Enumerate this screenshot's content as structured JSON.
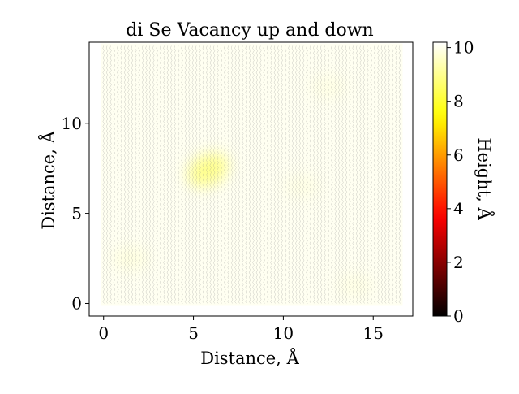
{
  "chart_data": {
    "type": "heatmap",
    "title": "di Se Vacancy up and down",
    "xlabel": "Distance, Å",
    "ylabel": "Distance, Å",
    "xlim": [
      -0.8,
      17.2
    ],
    "ylim": [
      -0.7,
      14.5
    ],
    "x_ticks": [
      0,
      5,
      10,
      15
    ],
    "y_ticks": [
      0,
      5,
      10
    ],
    "x_extent": [
      0,
      16.5
    ],
    "y_extent": [
      0,
      14.3
    ],
    "grid": false,
    "colormap": "hot",
    "colorbar": {
      "label": "Height, Å",
      "min": 0,
      "max": 10.2,
      "ticks": [
        0,
        2,
        4,
        6,
        8,
        10
      ]
    },
    "baseline_height": 10.05,
    "features": [
      {
        "x": 5.8,
        "y": 7.4,
        "height": 8.9,
        "label": "depression"
      },
      {
        "x": 12.5,
        "y": 12.0,
        "height": 9.8
      },
      {
        "x": 1.5,
        "y": 2.5,
        "height": 9.7
      },
      {
        "x": 11.0,
        "y": 6.5,
        "height": 9.8
      },
      {
        "x": 14.0,
        "y": 1.0,
        "height": 9.8
      }
    ]
  }
}
